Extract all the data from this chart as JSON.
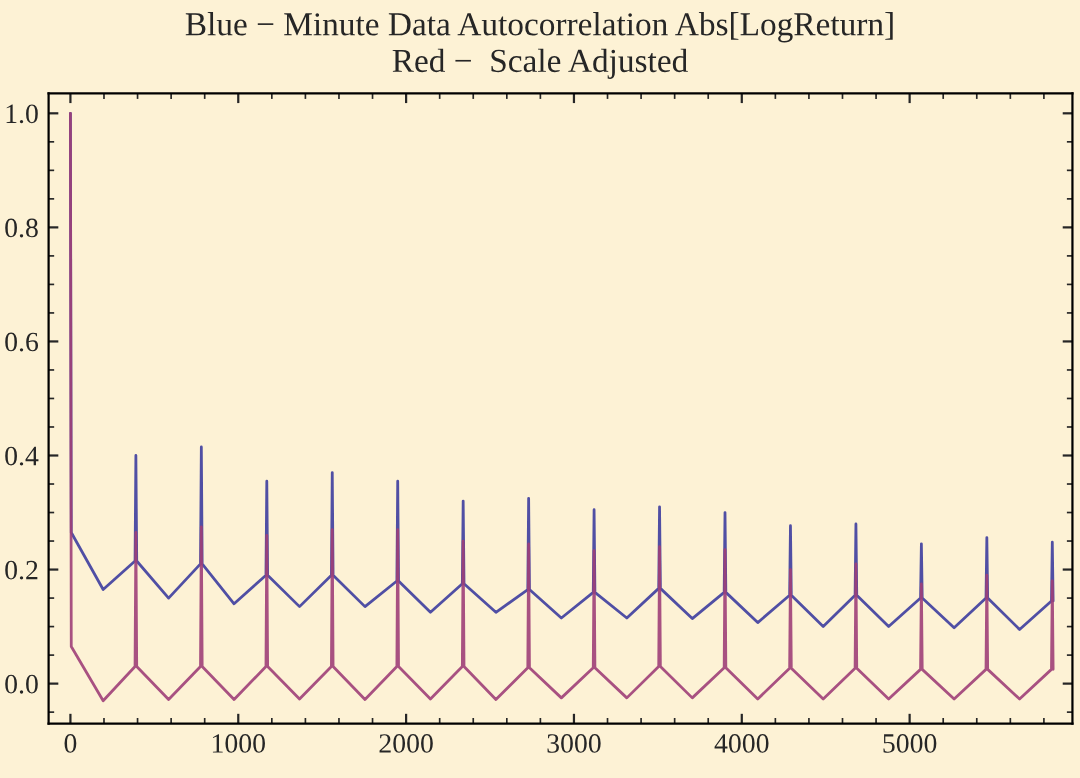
{
  "chart_data": {
    "type": "line",
    "title": "Blue − Minute Data Autocorrelation Abs[LogReturn]",
    "subtitle": "Red −  Scale Adjusted",
    "x": [
      0,
      5,
      195,
      385,
      390,
      395,
      585,
      775,
      780,
      785,
      975,
      1165,
      1170,
      1175,
      1365,
      1555,
      1560,
      1565,
      1755,
      1945,
      1950,
      1955,
      2145,
      2335,
      2340,
      2345,
      2535,
      2725,
      2730,
      2735,
      2925,
      3115,
      3120,
      3125,
      3315,
      3505,
      3510,
      3515,
      3705,
      3895,
      3900,
      3905,
      4095,
      4285,
      4290,
      4295,
      4485,
      4675,
      4680,
      4685,
      4875,
      5065,
      5070,
      5075,
      5265,
      5455,
      5460,
      5465,
      5655,
      5845,
      5850,
      5855
    ],
    "series": [
      {
        "color": "#3d3d9f",
        "values": [
          1.0,
          0.265,
          0.165,
          0.215,
          0.4,
          0.215,
          0.15,
          0.21,
          0.415,
          0.21,
          0.14,
          0.19,
          0.355,
          0.19,
          0.135,
          0.19,
          0.37,
          0.19,
          0.135,
          0.18,
          0.355,
          0.18,
          0.125,
          0.175,
          0.32,
          0.175,
          0.125,
          0.165,
          0.325,
          0.165,
          0.115,
          0.16,
          0.305,
          0.16,
          0.115,
          0.167,
          0.31,
          0.167,
          0.114,
          0.16,
          0.3,
          0.16,
          0.107,
          0.155,
          0.277,
          0.155,
          0.1,
          0.155,
          0.28,
          0.155,
          0.1,
          0.15,
          0.245,
          0.15,
          0.098,
          0.15,
          0.256,
          0.15,
          0.095,
          0.145,
          0.248,
          0.145
        ]
      },
      {
        "color": "#9e3f78",
        "values": [
          1.0,
          0.065,
          -0.03,
          0.03,
          0.265,
          0.03,
          -0.028,
          0.03,
          0.275,
          0.03,
          -0.028,
          0.03,
          0.26,
          0.03,
          -0.027,
          0.03,
          0.27,
          0.03,
          -0.028,
          0.03,
          0.27,
          0.03,
          -0.027,
          0.03,
          0.25,
          0.03,
          -0.028,
          0.028,
          0.245,
          0.028,
          -0.025,
          0.028,
          0.233,
          0.028,
          -0.025,
          0.03,
          0.24,
          0.03,
          -0.025,
          0.028,
          0.235,
          0.028,
          -0.027,
          0.027,
          0.2,
          0.027,
          -0.027,
          0.027,
          0.21,
          0.027,
          -0.027,
          0.025,
          0.175,
          0.025,
          -0.027,
          0.025,
          0.19,
          0.025,
          -0.027,
          0.025,
          0.18,
          0.025
        ]
      }
    ],
    "xlim": [
      -130,
      5970
    ],
    "ylim": [
      -0.07,
      1.035
    ],
    "xticks": [
      0,
      1000,
      2000,
      3000,
      4000,
      5000
    ],
    "yticks": [
      {
        "value": 0,
        "label": "0.0"
      },
      {
        "value": 0.2,
        "label": "0.2"
      },
      {
        "value": 0.4,
        "label": "0.4"
      },
      {
        "value": 0.6,
        "label": "0.6"
      },
      {
        "value": 0.8,
        "label": "0.8"
      },
      {
        "value": 1.0,
        "label": "1.0"
      }
    ],
    "grid": false,
    "legend": false
  }
}
